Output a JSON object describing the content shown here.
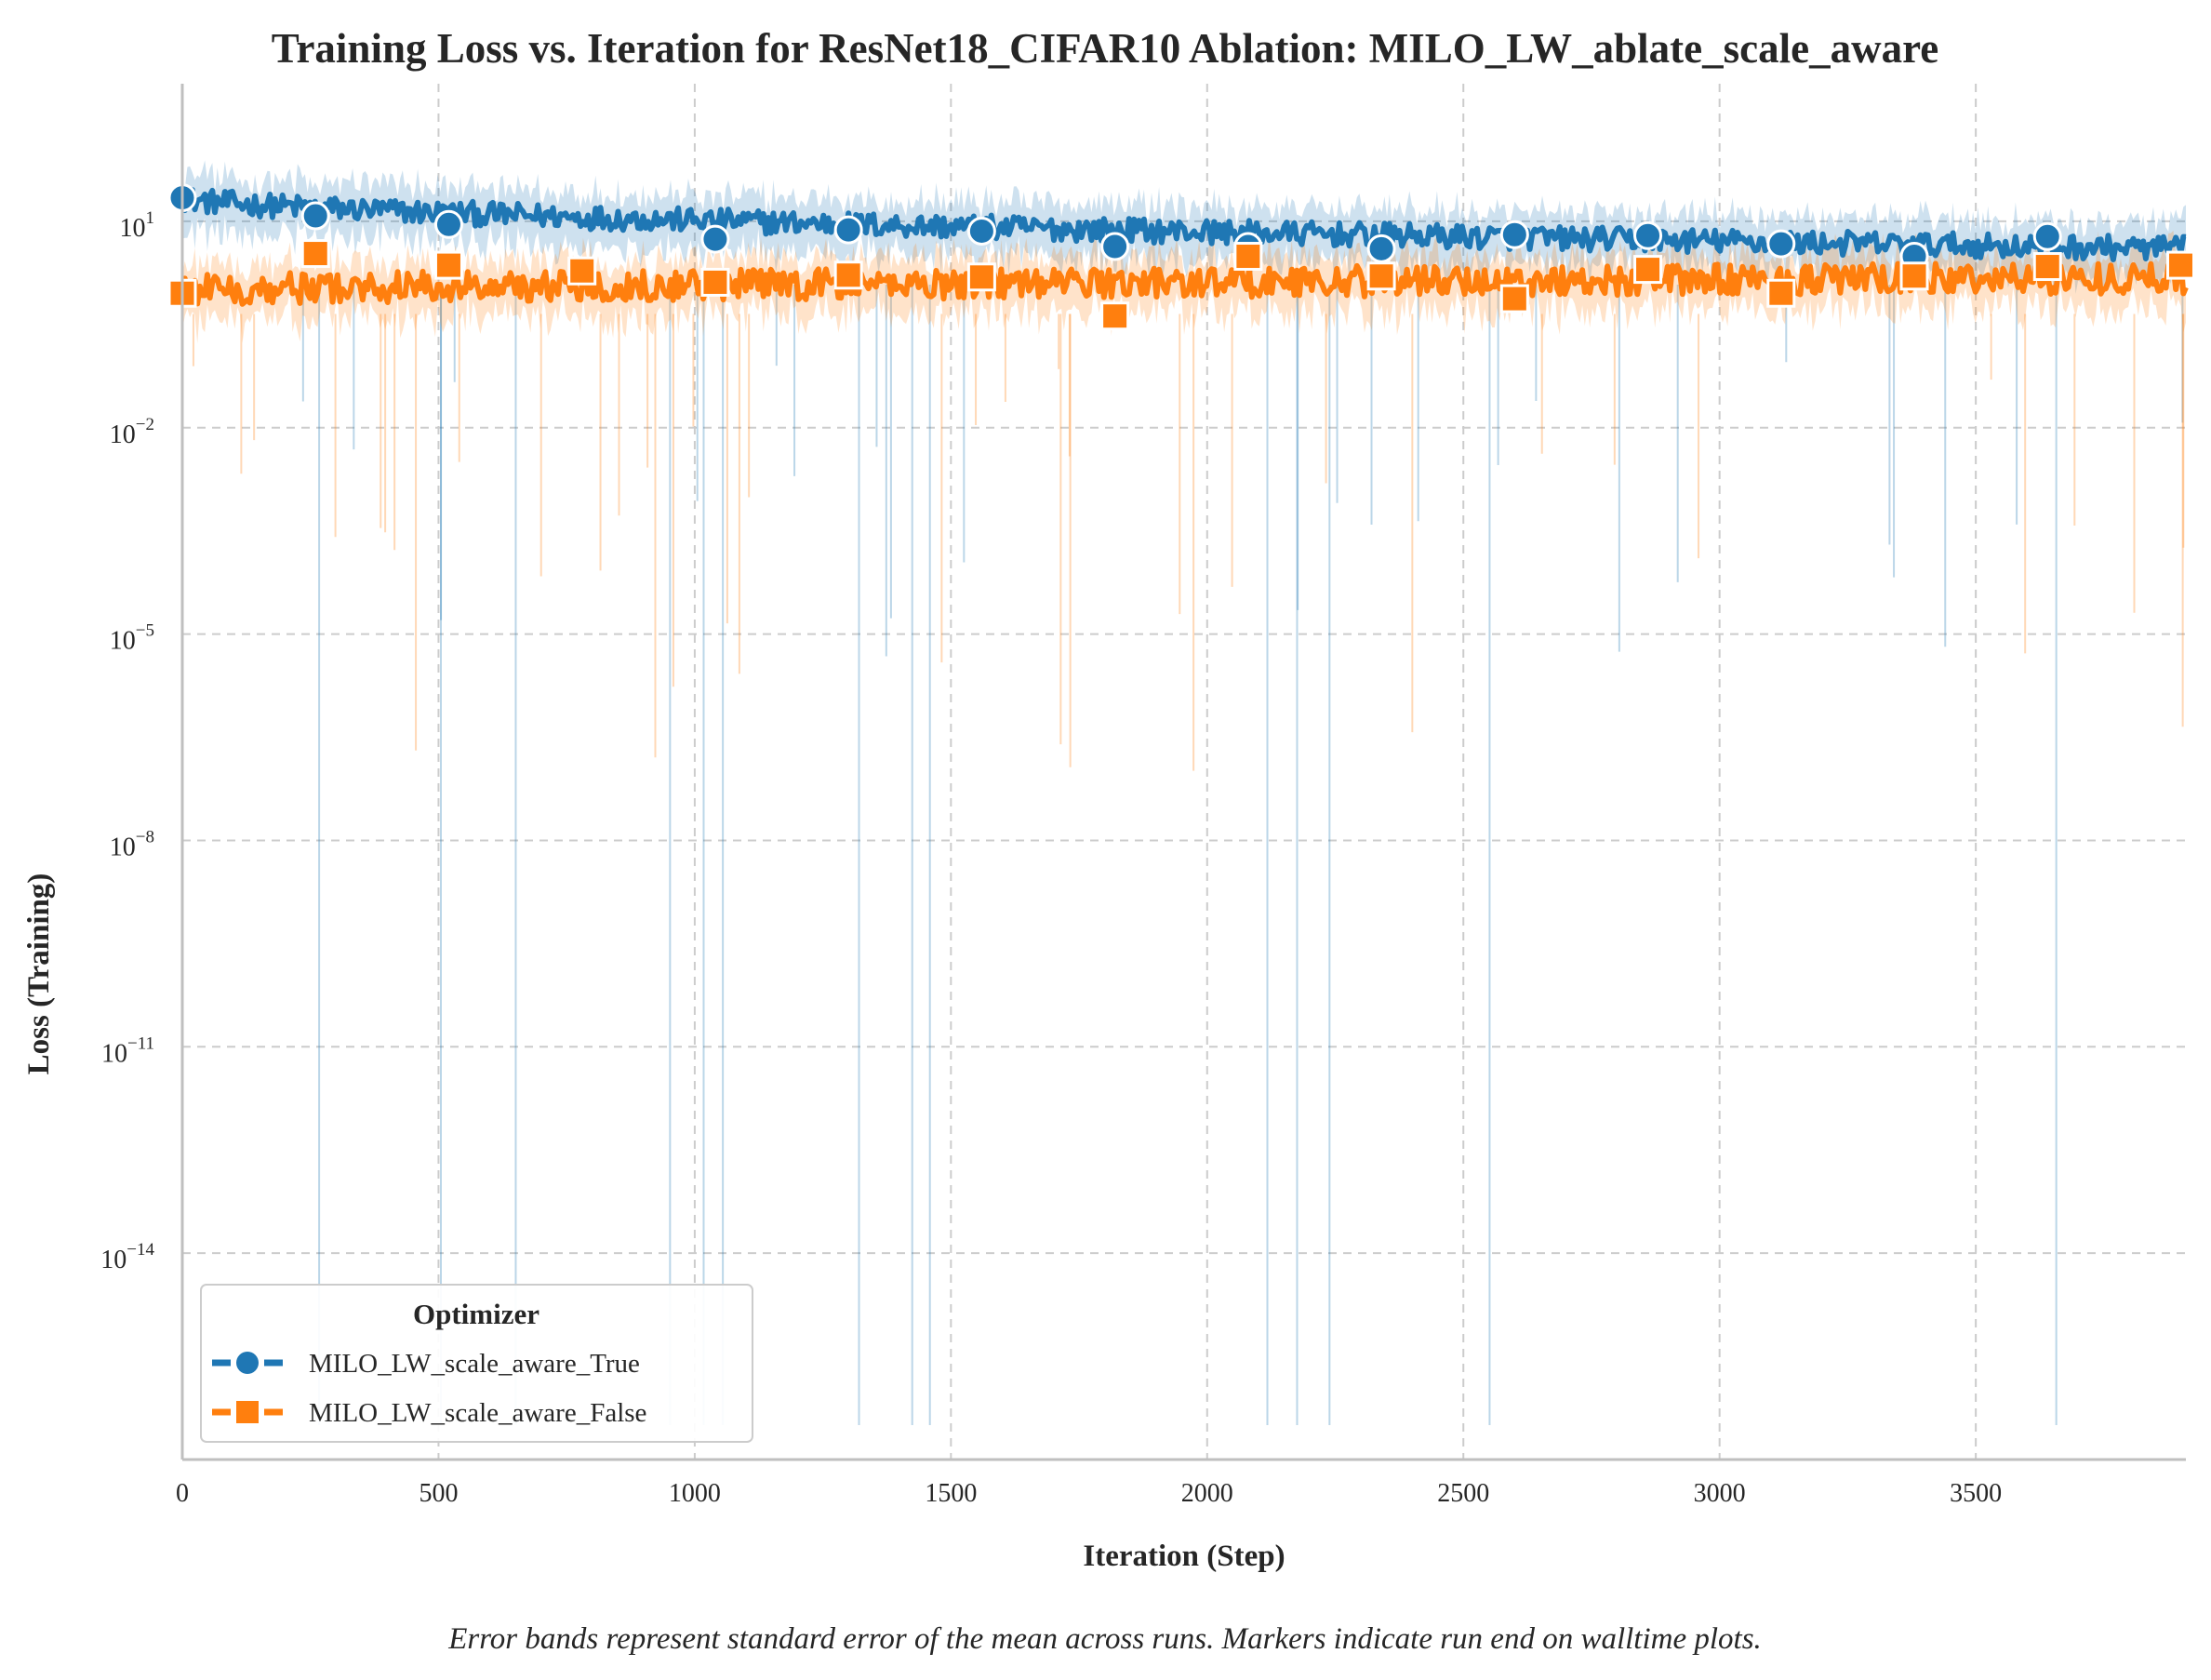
{
  "chart_data": {
    "type": "line",
    "title": "Training Loss vs. Iteration for ResNet18_CIFAR10 Ablation: MILO_LW_ablate_scale_aware",
    "xlabel": "Iteration (Step)",
    "ylabel": "Loss (Training)",
    "xlim": [
      0,
      3910
    ],
    "ylim": [
      1e-17,
      1000
    ],
    "yscale": "log",
    "x_ticks": [
      "0",
      "500",
      "1000",
      "1500",
      "2000",
      "2500",
      "3000",
      "3500"
    ],
    "x_tick_values": [
      0,
      500,
      1000,
      1500,
      2000,
      2500,
      3000,
      3500
    ],
    "y_ticks": [
      {
        "base": "10",
        "exp": "1",
        "value": 1
      },
      {
        "base": "10",
        "exp": "−2",
        "value": -2
      },
      {
        "base": "10",
        "exp": "−5",
        "value": -5
      },
      {
        "base": "10",
        "exp": "−8",
        "value": -8
      },
      {
        "base": "10",
        "exp": "−11",
        "value": -11
      },
      {
        "base": "10",
        "exp": "−14",
        "value": -14
      }
    ],
    "grid": true,
    "legend": {
      "title": "Optimizer",
      "position": "lower-left"
    },
    "caption": "Error bands represent standard error of the mean across runs. Markers indicate run end on walltime plots.",
    "series": [
      {
        "name": "MILO_LW_scale_aware_True",
        "color": "#1f77b4",
        "marker": "circle",
        "approx_loss_start": 22,
        "approx_loss_end": 4,
        "marker_x": [
          0,
          260,
          520,
          1040,
          1300,
          1560,
          1820,
          2080,
          2340,
          2600,
          2860,
          3120,
          3380,
          3640
        ],
        "marker_y": [
          22,
          12,
          9,
          5.5,
          7.5,
          7.2,
          4.3,
          4.3,
          4.0,
          6.4,
          6.2,
          4.7,
          3.1,
          6.0
        ]
      },
      {
        "name": "MILO_LW_scale_aware_False",
        "color": "#ff7f0e",
        "marker": "square",
        "approx_loss_start": 1.0,
        "approx_loss_end": 1.5,
        "marker_x": [
          0,
          260,
          520,
          780,
          1040,
          1300,
          1560,
          1820,
          2080,
          2340,
          2600,
          2860,
          3120,
          3380,
          3640,
          3900
        ],
        "marker_y": [
          0.9,
          3.4,
          2.3,
          1.9,
          1.3,
          1.65,
          1.55,
          0.42,
          3.1,
          1.6,
          0.75,
          2.0,
          0.9,
          1.6,
          2.2,
          2.3
        ]
      }
    ]
  }
}
